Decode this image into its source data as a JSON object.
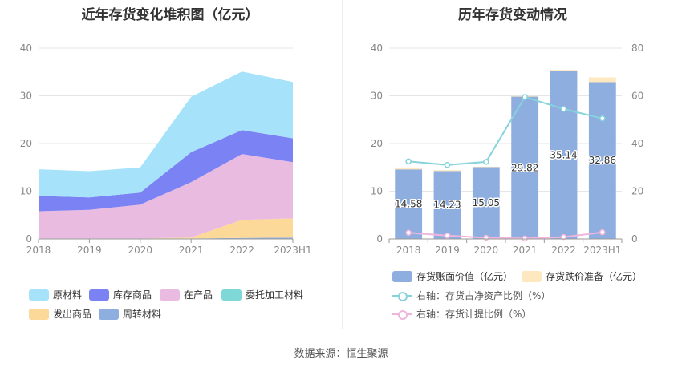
{
  "source": "数据来源：恒生聚源",
  "colors": {
    "raw_materials": "#a6e3fb",
    "finished_goods": "#7b82f4",
    "wip": "#eabbe0",
    "outsourced": "#7fd8d8",
    "goods_shipped": "#fdd999",
    "turnover": "#8eaee0",
    "book_value": "#8eaedf",
    "impairment": "#fde8c0",
    "ratio_assets": "#86d3dc",
    "ratio_provision": "#f0b5dc"
  },
  "chart_data": [
    {
      "type": "area",
      "stacked": true,
      "title": "近年存货变化堆积图（亿元）",
      "categories": [
        "2018",
        "2019",
        "2020",
        "2021",
        "2022",
        "2023H1"
      ],
      "ylim": [
        0,
        40
      ],
      "yticks": [
        0,
        10,
        20,
        30,
        40
      ],
      "series": [
        {
          "name": "周转材料",
          "color_key": "turnover",
          "values": [
            0.1,
            0.1,
            0.1,
            0.1,
            0.2,
            0.3
          ]
        },
        {
          "name": "发出商品",
          "color_key": "goods_shipped",
          "values": [
            0,
            0,
            0,
            0.2,
            3.8,
            4.0
          ]
        },
        {
          "name": "委托加工材料",
          "color_key": "outsourced",
          "values": [
            0,
            0,
            0,
            0,
            0,
            0
          ]
        },
        {
          "name": "在产品",
          "color_key": "wip",
          "values": [
            5.7,
            6.0,
            7.1,
            11.6,
            13.8,
            11.8
          ]
        },
        {
          "name": "库存商品",
          "color_key": "finished_goods",
          "values": [
            3.2,
            2.6,
            2.5,
            6.3,
            5.0,
            5.0
          ]
        },
        {
          "name": "原材料",
          "color_key": "raw_materials",
          "values": [
            5.6,
            5.5,
            5.3,
            11.6,
            12.3,
            11.8
          ]
        }
      ],
      "legend": [
        {
          "name": "原材料",
          "color_key": "raw_materials"
        },
        {
          "name": "库存商品",
          "color_key": "finished_goods"
        },
        {
          "name": "在产品",
          "color_key": "wip"
        },
        {
          "name": "委托加工材料",
          "color_key": "outsourced"
        },
        {
          "name": "发出商品",
          "color_key": "goods_shipped"
        },
        {
          "name": "周转材料",
          "color_key": "turnover"
        }
      ]
    },
    {
      "type": "bar",
      "title": "历年存货变动情况",
      "categories": [
        "2018",
        "2019",
        "2020",
        "2021",
        "2022",
        "2023H1"
      ],
      "ylim": [
        0,
        40
      ],
      "yticks": [
        0,
        10,
        20,
        30,
        40
      ],
      "y2lim": [
        0,
        80
      ],
      "y2ticks": [
        0,
        20,
        40,
        60,
        80
      ],
      "bars": [
        {
          "name": "存货账面价值（亿元）",
          "color_key": "book_value",
          "values": [
            14.58,
            14.23,
            15.05,
            29.82,
            35.14,
            32.86
          ],
          "labels": [
            "14.58",
            "14.23",
            "15.05",
            "29.82",
            "35.14",
            "32.86"
          ]
        },
        {
          "name": "存货跌价准备（亿元）",
          "color_key": "impairment",
          "values": [
            0.4,
            0.2,
            0.1,
            0.1,
            0.3,
            1.0
          ]
        }
      ],
      "lines": [
        {
          "name": "右轴：存货占净资产比例（%）",
          "color_key": "ratio_assets",
          "axis": "right",
          "values": [
            32.5,
            31.0,
            32.3,
            59.5,
            54.5,
            50.5
          ]
        },
        {
          "name": "右轴：存货计提比例（%）",
          "color_key": "ratio_provision",
          "axis": "right",
          "values": [
            2.6,
            1.4,
            0.5,
            0.2,
            0.8,
            2.8
          ]
        }
      ]
    }
  ]
}
